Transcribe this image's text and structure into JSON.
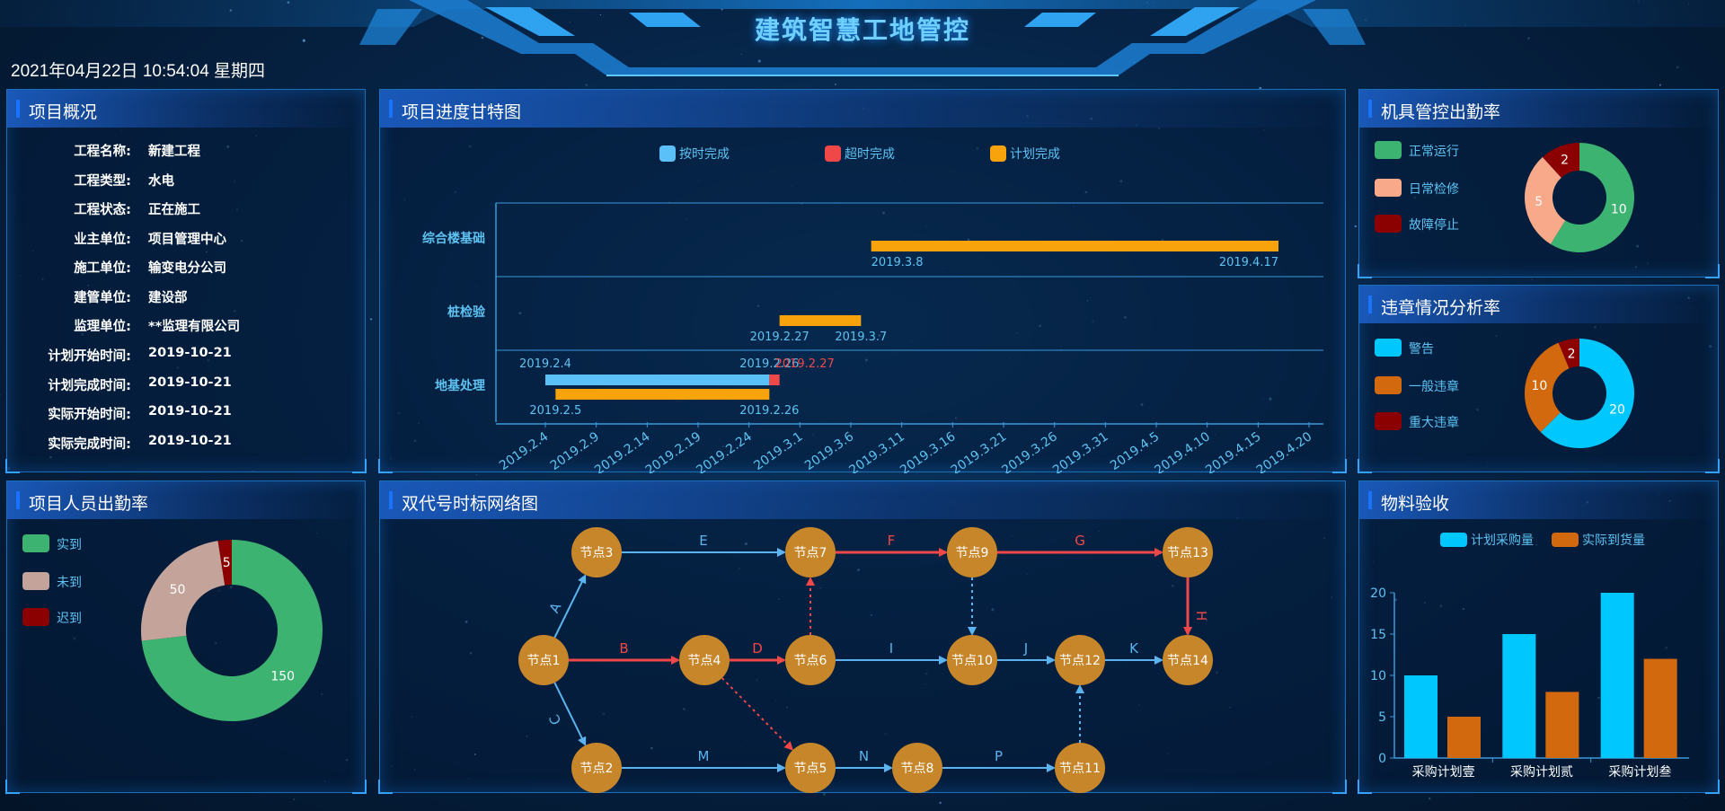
{
  "header": {
    "title": "建筑智慧工地管控",
    "datetime": "2021年04月22日 10:54:04 星期四"
  },
  "project_overview": {
    "title": "项目概况",
    "rows": [
      {
        "label": "工程名称:",
        "value": "新建工程"
      },
      {
        "label": "工程类型:",
        "value": "水电"
      },
      {
        "label": "工程状态:",
        "value": "正在施工"
      },
      {
        "label": "业主单位:",
        "value": "项目管理中心"
      },
      {
        "label": "施工单位:",
        "value": "输变电分公司"
      },
      {
        "label": "建管单位:",
        "value": "建设部"
      },
      {
        "label": "监理单位:",
        "value": "**监理有限公司"
      },
      {
        "label": "计划开始时间:",
        "value": "2019-10-21"
      },
      {
        "label": "计划完成时间:",
        "value": "2019-10-21"
      },
      {
        "label": "实际开始时间:",
        "value": "2019-10-21"
      },
      {
        "label": "实际完成时间:",
        "value": "2019-10-21"
      }
    ]
  },
  "gantt": {
    "title": "项目进度甘特图",
    "legend": [
      {
        "label": "按时完成",
        "color": "#5bc0f8"
      },
      {
        "label": "超时完成",
        "color": "#f04848"
      },
      {
        "label": "计划完成",
        "color": "#f8a20c"
      }
    ],
    "rows": [
      "综合楼基础",
      "桩检验",
      "地基处理"
    ],
    "x_ticks": [
      "2019.2.4",
      "2019.2.9",
      "2019.2.14",
      "2019.2.19",
      "2019.2.24",
      "2019.3.1",
      "2019.3.6",
      "2019.3.11",
      "2019.3.16",
      "2019.3.21",
      "2019.3.26",
      "2019.3.31",
      "2019.4.5",
      "2019.4.10",
      "2019.4.15",
      "2019.4.20"
    ],
    "bars": [
      {
        "row": "综合楼基础",
        "kind": "计划完成",
        "start": "2019.3.8",
        "end": "2019.4.17",
        "start_label": "2019.3.8",
        "end_label": "2019.4.17"
      },
      {
        "row": "桩检验",
        "kind": "计划完成",
        "start": "2019.2.27",
        "end": "2019.3.7",
        "start_label": "2019.2.27",
        "end_label": "2019.3.7"
      },
      {
        "row": "地基处理",
        "kind": "按时完成",
        "start": "2019.2.4",
        "end": "2019.2.26",
        "start_label": "2019.2.4",
        "end_label": "2019.2.26"
      },
      {
        "row": "地基处理",
        "kind": "超时完成",
        "start": "2019.2.26",
        "end": "2019.2.27",
        "end_label": "2019.2.27"
      },
      {
        "row": "地基处理",
        "kind": "计划完成",
        "start": "2019.2.5",
        "end": "2019.2.26",
        "start_label": "2019.2.5",
        "end_label": "2019.2.26"
      }
    ]
  },
  "tool_attendance": {
    "title": "机具管控出勤率",
    "legend": [
      {
        "label": "正常运行",
        "color": "#3cb371"
      },
      {
        "label": "日常检修",
        "color": "#f7a98a"
      },
      {
        "label": "故障停止",
        "color": "#8b0000"
      }
    ],
    "chart_data": {
      "type": "pie",
      "categories": [
        "正常运行",
        "日常检修",
        "故障停止"
      ],
      "values": [
        10,
        5,
        2
      ]
    }
  },
  "violation_analysis": {
    "title": "违章情况分析率",
    "legend": [
      {
        "label": "警告",
        "color": "#00c8ff"
      },
      {
        "label": "一般违章",
        "color": "#d2690e"
      },
      {
        "label": "重大违章",
        "color": "#8b0000"
      }
    ],
    "chart_data": {
      "type": "pie",
      "categories": [
        "警告",
        "一般违章",
        "重大违章"
      ],
      "values": [
        20,
        10,
        2
      ]
    }
  },
  "staff_attendance": {
    "title": "项目人员出勤率",
    "legend": [
      {
        "label": "实到",
        "color": "#3cb371"
      },
      {
        "label": "未到",
        "color": "#c4a49a"
      },
      {
        "label": "迟到",
        "color": "#8b0000"
      }
    ],
    "chart_data": {
      "type": "pie",
      "categories": [
        "实到",
        "未到",
        "迟到"
      ],
      "values": [
        150,
        50,
        5
      ]
    }
  },
  "network": {
    "title": "双代号时标网络图",
    "nodes": [
      {
        "id": "n1",
        "label": "节点1"
      },
      {
        "id": "n2",
        "label": "节点2"
      },
      {
        "id": "n3",
        "label": "节点3"
      },
      {
        "id": "n4",
        "label": "节点4"
      },
      {
        "id": "n5",
        "label": "节点5"
      },
      {
        "id": "n6",
        "label": "节点6"
      },
      {
        "id": "n7",
        "label": "节点7"
      },
      {
        "id": "n8",
        "label": "节点8"
      },
      {
        "id": "n9",
        "label": "节点9"
      },
      {
        "id": "n10",
        "label": "节点10"
      },
      {
        "id": "n11",
        "label": "节点11"
      },
      {
        "id": "n12",
        "label": "节点12"
      },
      {
        "id": "n13",
        "label": "节点13"
      },
      {
        "id": "n14",
        "label": "节点14"
      }
    ],
    "edges": [
      {
        "from": "n1",
        "to": "n3",
        "label": "A",
        "critical": false,
        "dashed": false
      },
      {
        "from": "n1",
        "to": "n4",
        "label": "B",
        "critical": true,
        "dashed": false
      },
      {
        "from": "n1",
        "to": "n2",
        "label": "C",
        "critical": false,
        "dashed": false
      },
      {
        "from": "n4",
        "to": "n6",
        "label": "D",
        "critical": true,
        "dashed": false
      },
      {
        "from": "n3",
        "to": "n7",
        "label": "E",
        "critical": false,
        "dashed": false
      },
      {
        "from": "n7",
        "to": "n9",
        "label": "F",
        "critical": true,
        "dashed": false
      },
      {
        "from": "n9",
        "to": "n13",
        "label": "G",
        "critical": true,
        "dashed": false
      },
      {
        "from": "n13",
        "to": "n14",
        "label": "H",
        "critical": true,
        "dashed": false
      },
      {
        "from": "n6",
        "to": "n10",
        "label": "I",
        "critical": false,
        "dashed": false
      },
      {
        "from": "n10",
        "to": "n12",
        "label": "J",
        "critical": false,
        "dashed": false
      },
      {
        "from": "n12",
        "to": "n14",
        "label": "K",
        "critical": false,
        "dashed": false
      },
      {
        "from": "n2",
        "to": "n5",
        "label": "M",
        "critical": false,
        "dashed": false
      },
      {
        "from": "n5",
        "to": "n8",
        "label": "N",
        "critical": false,
        "dashed": false
      },
      {
        "from": "n8",
        "to": "n11",
        "label": "P",
        "critical": false,
        "dashed": false
      },
      {
        "from": "n6",
        "to": "n7",
        "label": "",
        "critical": true,
        "dashed": true
      },
      {
        "from": "n4",
        "to": "n5",
        "label": "",
        "critical": true,
        "dashed": true
      },
      {
        "from": "n9",
        "to": "n10",
        "label": "",
        "critical": false,
        "dashed": true
      },
      {
        "from": "n11",
        "to": "n12",
        "label": "",
        "critical": false,
        "dashed": true
      }
    ]
  },
  "materials": {
    "title": "物料验收",
    "legend": [
      {
        "label": "计划采购量",
        "color": "#00c8ff"
      },
      {
        "label": "实际到货量",
        "color": "#d2690e"
      }
    ],
    "chart_data": {
      "type": "bar",
      "categories": [
        "采购计划壹",
        "采购计划贰",
        "采购计划叁"
      ],
      "series": [
        {
          "name": "计划采购量",
          "values": [
            10,
            15,
            20
          ]
        },
        {
          "name": "实际到货量",
          "values": [
            5,
            8,
            12
          ]
        }
      ],
      "y_ticks": [
        "0",
        "5",
        "10",
        "15",
        "20"
      ],
      "ylim": [
        0,
        20
      ]
    }
  }
}
